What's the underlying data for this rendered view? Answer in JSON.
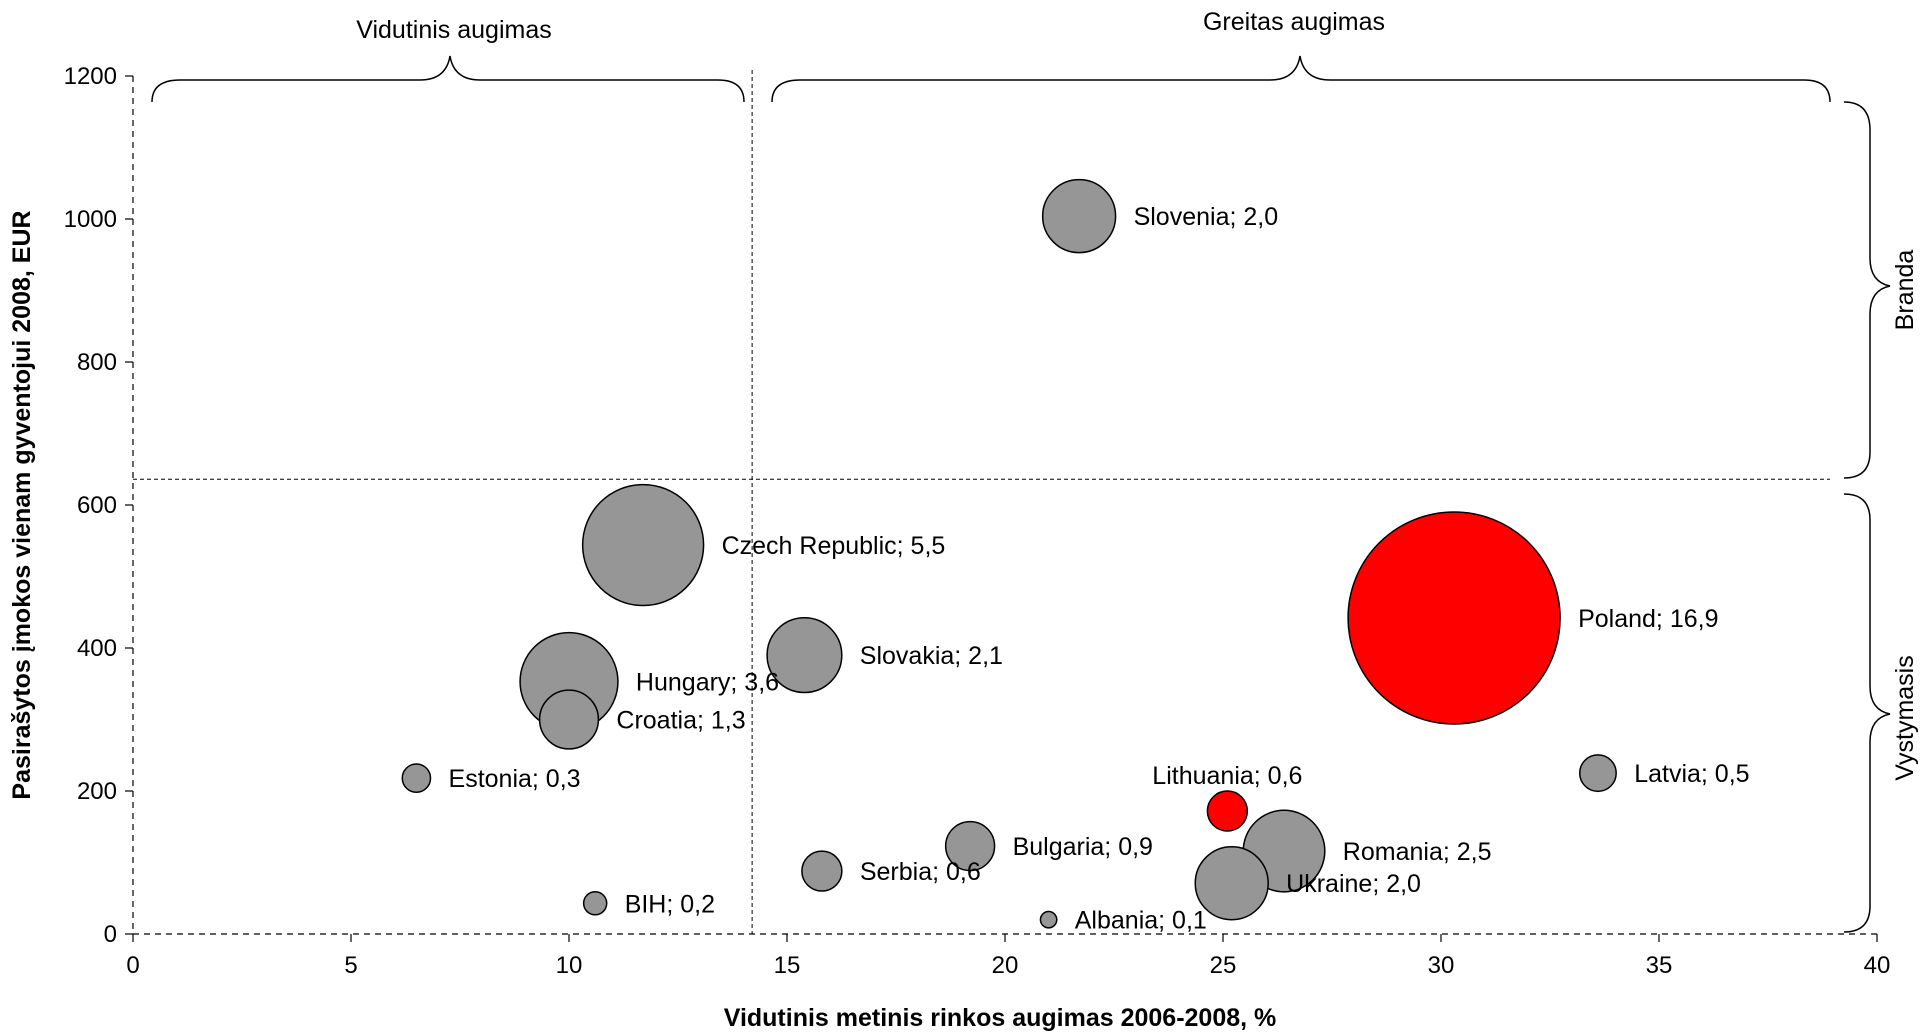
{
  "chart_data": {
    "type": "scatter",
    "subtype": "bubble",
    "xlabel": "Vidutinis metinis rinkos augimas 2006-2008, %",
    "ylabel": "Pasirašytos įmokos vienam gyventojui 2008, EUR",
    "xlim": [
      0,
      40
    ],
    "ylim": [
      0,
      1200
    ],
    "xticks": [
      0,
      5,
      10,
      15,
      20,
      25,
      30,
      35,
      40
    ],
    "yticks": [
      0,
      200,
      400,
      600,
      800,
      1000,
      1200
    ],
    "grid": false,
    "legend": "none",
    "colors": {
      "bubble": "#969696",
      "highlight": "#ff0000",
      "outline": "#000000"
    },
    "divider": {
      "x": 14.2,
      "y": 636
    },
    "points": [
      {
        "label": "Slovenia; 2,0",
        "x": 21.7,
        "y": 1004,
        "size": 2.0,
        "highlight": false
      },
      {
        "label": "Czech Republic; 5,5",
        "x": 11.7,
        "y": 544,
        "size": 5.5,
        "highlight": false
      },
      {
        "label": "Poland; 16,9",
        "x": 30.3,
        "y": 442,
        "size": 16.9,
        "highlight": true
      },
      {
        "label": "Slovakia; 2,1",
        "x": 15.4,
        "y": 390,
        "size": 2.1,
        "highlight": false
      },
      {
        "label": "Hungary; 3,6",
        "x": 10.0,
        "y": 353,
        "size": 3.6,
        "highlight": false
      },
      {
        "label": "Croatia; 1,3",
        "x": 10.0,
        "y": 300,
        "size": 1.3,
        "highlight": false
      },
      {
        "label": "Estonia; 0,3",
        "x": 6.5,
        "y": 218,
        "size": 0.3,
        "highlight": false
      },
      {
        "label": "Latvia; 0,5",
        "x": 33.6,
        "y": 225,
        "size": 0.5,
        "highlight": false
      },
      {
        "label": "Lithuania; 0,6",
        "x": 25.1,
        "y": 172,
        "size": 0.6,
        "highlight": true
      },
      {
        "label": "Bulgaria; 0,9",
        "x": 19.2,
        "y": 123,
        "size": 0.9,
        "highlight": false
      },
      {
        "label": "Romania; 2,5",
        "x": 26.4,
        "y": 116,
        "size": 2.5,
        "highlight": false
      },
      {
        "label": "Serbia; 0,6",
        "x": 15.8,
        "y": 88,
        "size": 0.6,
        "highlight": false
      },
      {
        "label": "Ukraine; 2,0",
        "x": 25.2,
        "y": 71,
        "size": 2.0,
        "highlight": false
      },
      {
        "label": "BIH; 0,2",
        "x": 10.6,
        "y": 43,
        "size": 0.2,
        "highlight": false
      },
      {
        "label": "Albania; 0,1",
        "x": 21.0,
        "y": 20,
        "size": 0.1,
        "highlight": false
      }
    ],
    "annotations": {
      "top_left": "Vidutinis augimas",
      "top_right": "Greitas augimas",
      "right_top": "Branda",
      "right_bottom": "Vystymasis"
    }
  }
}
